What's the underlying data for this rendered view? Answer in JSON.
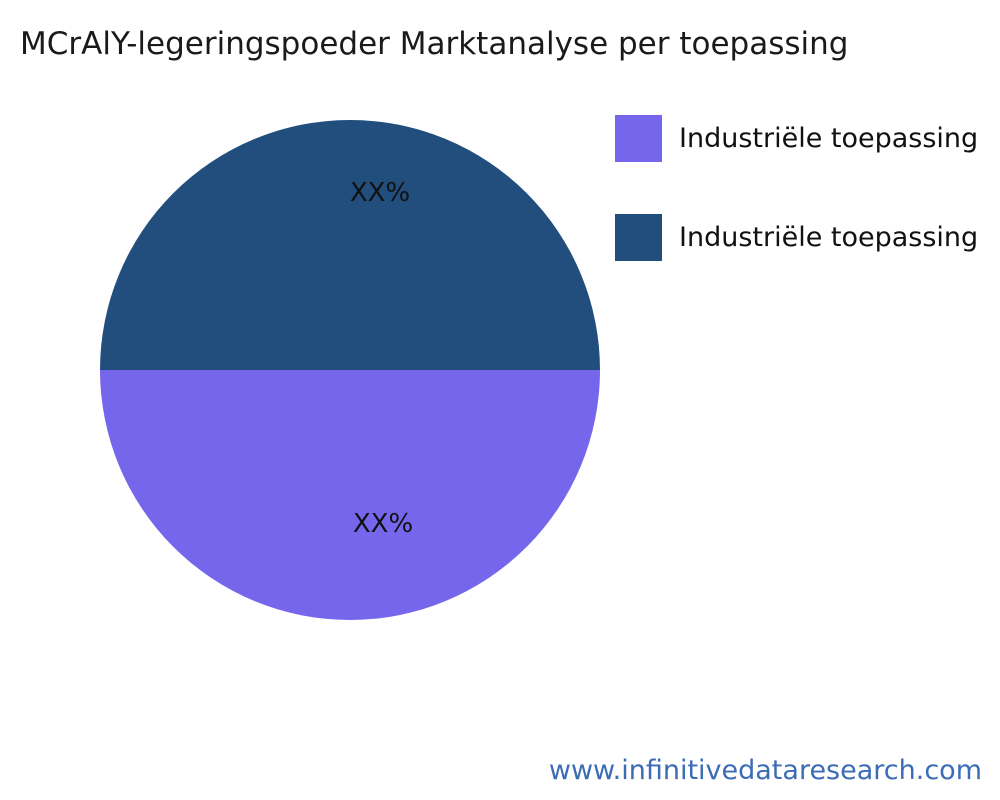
{
  "title": "MCrAlY-legeringspoeder Marktanalyse per toepassing",
  "footer": {
    "url": "www.infinitivedataresearch.com"
  },
  "chart_data": {
    "type": "pie",
    "title": "MCrAlY-legeringspoeder Marktanalyse per toepassing",
    "legend_position": "right",
    "start_angle_deg": 90,
    "slices": [
      {
        "label": "Industriële toepassing",
        "value": 50,
        "display_value": "XX%",
        "color": "#7566ec"
      },
      {
        "label": "Industriële toepassing",
        "value": 50,
        "display_value": "XX%",
        "color": "#224e7e"
      }
    ]
  }
}
